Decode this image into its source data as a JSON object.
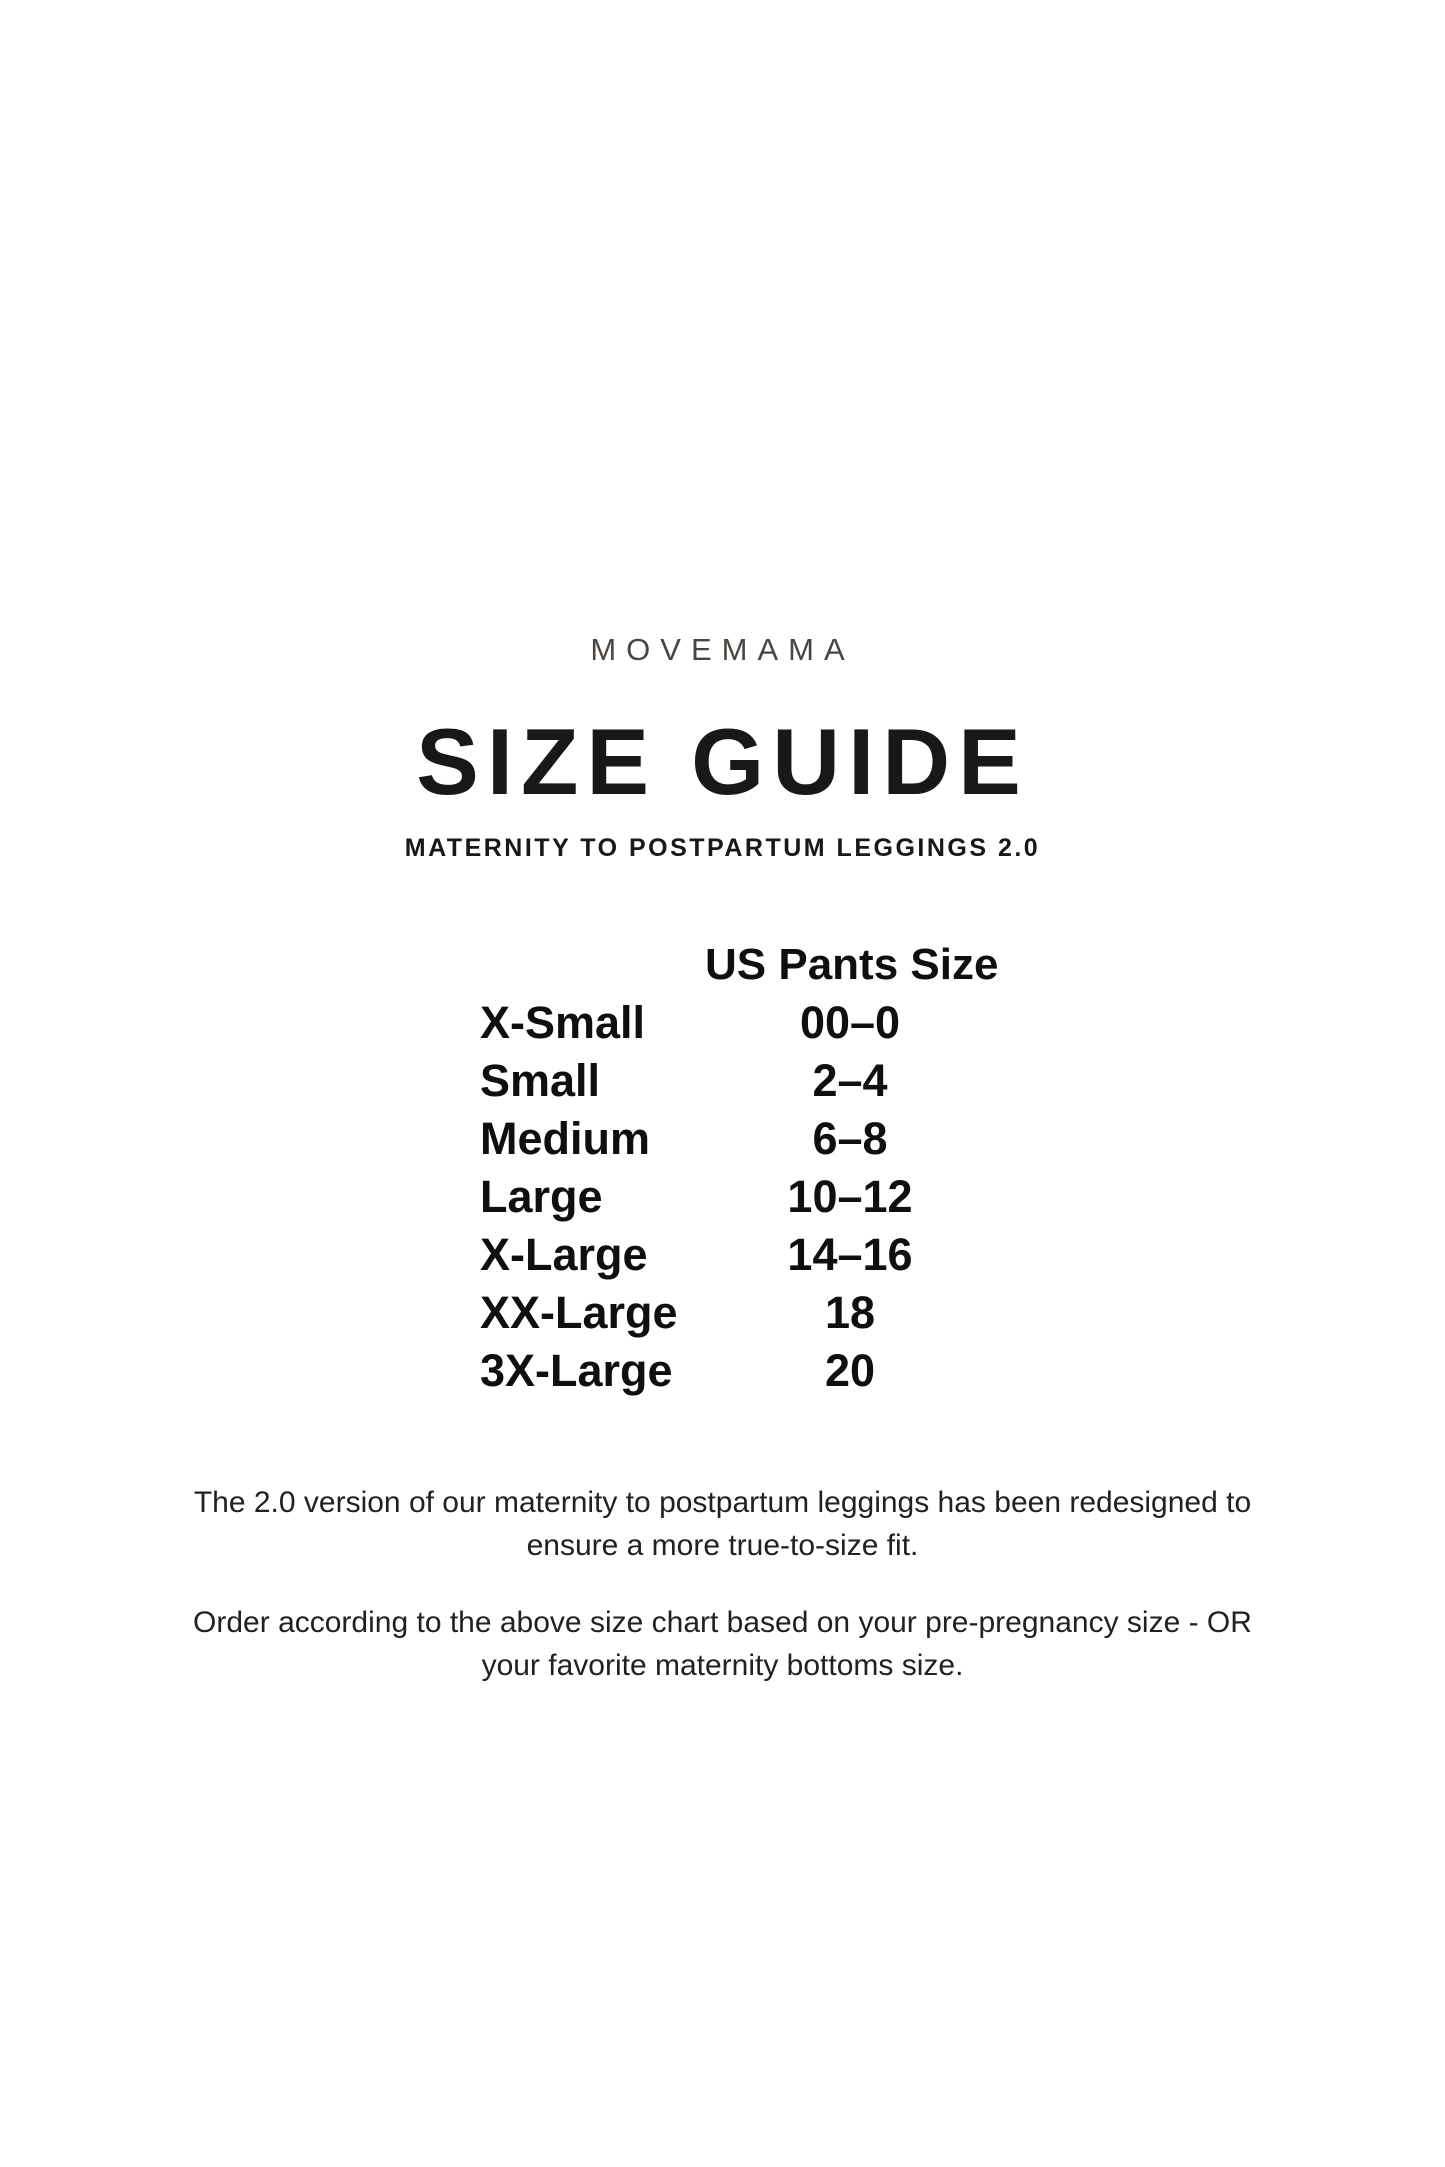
{
  "page": {
    "brand": "MOVEMAMA",
    "title": "SIZE GUIDE",
    "subtitle": "MATERNITY TO POSTPARTUM LEGGINGS 2.0"
  },
  "size_table": {
    "value_column_header": "US Pants Size",
    "rows": [
      {
        "label": "X-Small",
        "value": "00–0"
      },
      {
        "label": "Small",
        "value": "2–4"
      },
      {
        "label": "Medium",
        "value": "6–8"
      },
      {
        "label": "Large",
        "value": "10–12"
      },
      {
        "label": "X-Large",
        "value": "14–16"
      },
      {
        "label": "XX-Large",
        "value": "18"
      },
      {
        "label": "3X-Large",
        "value": "20"
      }
    ]
  },
  "notes": {
    "redesign_note_lines": [
      "The 2.0 version of our maternity to postpartum leggings has been redesigned to",
      "ensure a more true-to-size fit."
    ],
    "ordering_note_lines": [
      "Order according to the above size chart based on your pre-pregnancy size - OR",
      "your favorite maternity bottoms size."
    ]
  },
  "colors": {
    "background": "#ffffff",
    "brand_text": "#4b4540",
    "heading_text": "#191817",
    "table_text": "#0f0f0f",
    "body_text": "#212121"
  }
}
